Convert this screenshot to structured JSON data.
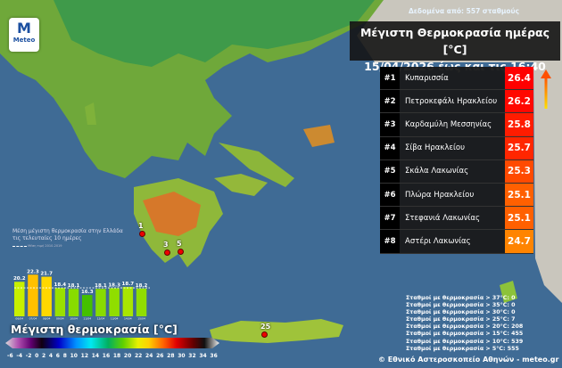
{
  "header": {
    "stations_note": "Δεδομένα από: 557 σταθμούς",
    "title_line1": "Μέγιστη Θερμοκρασία ημέρας [°C]",
    "title_line2": "15/04/2026 έως και τις 16:40"
  },
  "logo": {
    "text": "Meteo"
  },
  "ranking": [
    {
      "rank": "#1",
      "name": "Κυπαρισσία",
      "value": "26.4",
      "color": "#ff0000"
    },
    {
      "rank": "#2",
      "name": "Πετροκεφάλι Ηρακλείου",
      "value": "26.2",
      "color": "#ff0800"
    },
    {
      "rank": "#3",
      "name": "Καρδαμύλη Μεσσηνίας",
      "value": "25.8",
      "color": "#ff1c00"
    },
    {
      "rank": "#4",
      "name": "Σίβα Ηρακλείου",
      "value": "25.7",
      "color": "#ff2600"
    },
    {
      "rank": "#5",
      "name": "Σκάλα Λακωνίας",
      "value": "25.3",
      "color": "#ff4a00"
    },
    {
      "rank": "#6",
      "name": "Πλώρα Ηρακλείου",
      "value": "25.1",
      "color": "#ff6000"
    },
    {
      "rank": "#7",
      "name": "Στεφανιά Λακωνίας",
      "value": "25.1",
      "color": "#ff6000"
    },
    {
      "rank": "#8",
      "name": "Αστέρι Λακωνίας",
      "value": "24.7",
      "color": "#ff8400"
    }
  ],
  "map_markers": [
    {
      "label": "1"
    },
    {
      "label": "3"
    },
    {
      "label": "5"
    },
    {
      "label": "25"
    }
  ],
  "chart_data": {
    "type": "bar",
    "title": "Μέση μέγιστη θερμοκρασία στην Ελλάδα τις τελευταίες 10 ημέρες",
    "legend": "Μέση τιμή 2010-2019",
    "categories": [
      "06/04 2026",
      "07/04 2026",
      "08/04 2026",
      "09/04 2026",
      "10/04 2026",
      "11/04 2026",
      "12/04 2026",
      "13/04 2026",
      "14/04 2026",
      "15/04 2026"
    ],
    "values": [
      20.2,
      22.3,
      21.7,
      18.4,
      18.1,
      16.3,
      18.1,
      18.3,
      18.7,
      18.2
    ],
    "colors": [
      "#c8f000",
      "#ffc000",
      "#ffd800",
      "#9ae000",
      "#88dc00",
      "#44c000",
      "#88dc00",
      "#90de00",
      "#a8e600",
      "#90de00"
    ],
    "reference_line": 18.4
  },
  "legend": {
    "title": "Μέγιστη θερμοκρασία [°C]",
    "ticks": [
      "-6",
      "-4",
      "-2",
      "0",
      "2",
      "4",
      "6",
      "8",
      "10",
      "12",
      "14",
      "16",
      "18",
      "20",
      "22",
      "24",
      "26",
      "28",
      "30",
      "32",
      "34",
      "36"
    ]
  },
  "stats": [
    "Σταθμοί με θερμοκρασία > 37°C: 0",
    "Σταθμοί με θερμοκρασία > 35°C: 0",
    "Σταθμοί με θερμοκρασία > 30°C: 0",
    "Σταθμοί με θερμοκρασία > 25°C: 7",
    "Σταθμοί με θερμοκρασία > 20°C: 208",
    "Σταθμοί με θερμοκρασία > 15°C: 455",
    "Σταθμοί με θερμοκρασία > 10°C: 539",
    "Σταθμοί με θερμοκρασία > 5°C: 555"
  ],
  "footer": {
    "copyright": "© Εθνικό Αστεροσκοπείο Αθηνών - meteo.gr"
  }
}
